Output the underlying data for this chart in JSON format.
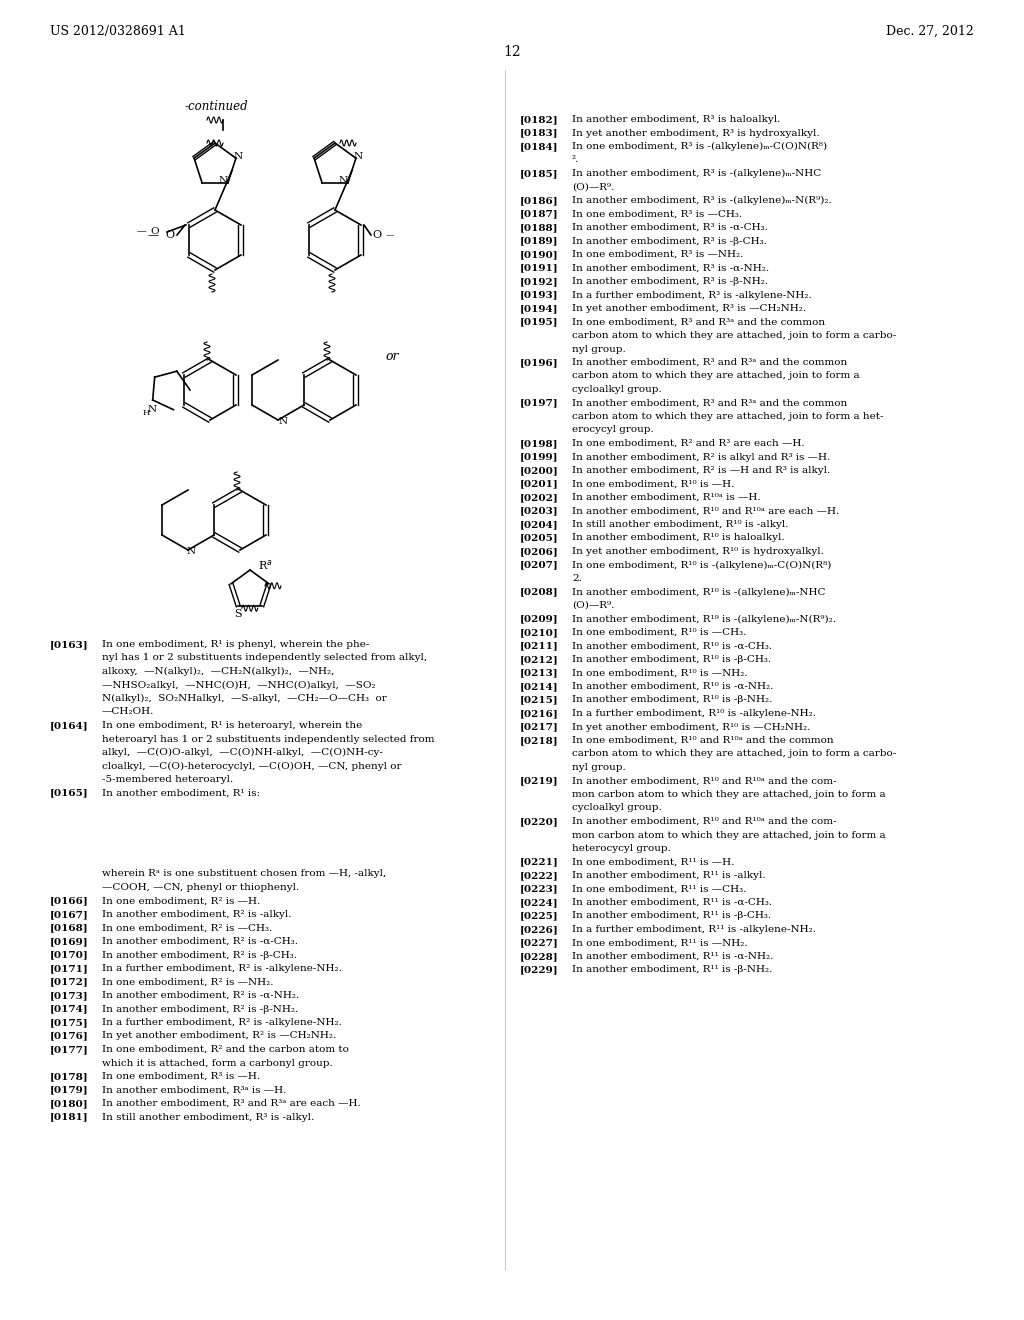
{
  "page_number": "12",
  "patent_number": "US 2012/0328691 A1",
  "patent_date": "Dec. 27, 2012",
  "background_color": "#ffffff",
  "text_color": "#000000",
  "font_size_header": 9.5,
  "font_size_body": 7.8,
  "font_size_page_num": 10,
  "continued_label": "-continued",
  "left_column_text": [
    [
      "[0163]",
      "In one embodiment, R¹ is phenyl, wherein the phe-\nnyl has 1 or 2 substituents independently selected from alkyl,\nalkoxy,  —N(alkyl)₂,  —CH₂N(alkyl)₂,  —NH₂,\n—NHSO₂alkyl,  —NHC(O)H,  —NHC(O)alkyl,  —SO₂\nN(alkyl)₂,  SO₂NHalkyl,  —S-alkyl,  —CH₂—O—CH₃  or\n—CH₂OH."
    ],
    [
      "[0164]",
      "In one embodiment, R¹ is heteroaryl, wherein the\nheteroaryl has 1 or 2 substituents independently selected from\nalkyl,  —C(O)O-alkyl,  —C(O)NH-alkyl,  —C(O)NH-cy-\ncloalkyl, —C(O)-heterocyclyl, —C(O)OH, —CN, phenyl or\n-5-membered heteroaryl."
    ],
    [
      "[0165]",
      "In another embodiment, R¹ is:"
    ],
    [
      "",
      "wherein Rᵃ is one substituent chosen from —H, -alkyl,\n—COOH, —CN, phenyl or thiophenyl."
    ],
    [
      "[0166]",
      "In one embodiment, R² is —H."
    ],
    [
      "[0167]",
      "In another embodiment, R² is -alkyl."
    ],
    [
      "[0168]",
      "In one embodiment, R² is —CH₃."
    ],
    [
      "[0169]",
      "In another embodiment, R² is -α-CH₃."
    ],
    [
      "[0170]",
      "In another embodiment, R² is -β-CH₃."
    ],
    [
      "[0171]",
      "In a further embodiment, R² is -alkylene-NH₂."
    ],
    [
      "[0172]",
      "In one embodiment, R² is —NH₂."
    ],
    [
      "[0173]",
      "In another embodiment, R² is -α-NH₂."
    ],
    [
      "[0174]",
      "In another embodiment, R² is -β-NH₂."
    ],
    [
      "[0175]",
      "In a further embodiment, R² is -alkylene-NH₂."
    ],
    [
      "[0176]",
      "In yet another embodiment, R² is —CH₂NH₂."
    ],
    [
      "[0177]",
      "In one embodiment, R² and the carbon atom to\nwhich it is attached, form a carbonyl group."
    ],
    [
      "[0178]",
      "In one embodiment, R³ is —H."
    ],
    [
      "[0179]",
      "In another embodiment, R³ᵃ is —H."
    ],
    [
      "[0180]",
      "In another embodiment, R³ and R³ᵃ are each —H."
    ],
    [
      "[0181]",
      "In still another embodiment, R³ is -alkyl."
    ]
  ],
  "right_column_text": [
    [
      "[0182]",
      "In another embodiment, R³ is haloalkyl."
    ],
    [
      "[0183]",
      "In yet another embodiment, R³ is hydroxyalkyl."
    ],
    [
      "[0184]",
      "In one embodiment, R³ is -(alkylene)ₘ-C(O)N(R⁸)\n²."
    ],
    [
      "[0185]",
      "In another embodiment, R³ is -(alkylene)ₘ-NHC\n(O)—R⁹."
    ],
    [
      "[0186]",
      "In another embodiment, R³ is -(alkylene)ₘ-N(R⁹)₂."
    ],
    [
      "[0187]",
      "In one embodiment, R³ is —CH₃."
    ],
    [
      "[0188]",
      "In another embodiment, R³ is -α-CH₃."
    ],
    [
      "[0189]",
      "In another embodiment, R³ is -β-CH₃."
    ],
    [
      "[0190]",
      "In one embodiment, R³ is —NH₂."
    ],
    [
      "[0191]",
      "In another embodiment, R³ is -α-NH₂."
    ],
    [
      "[0192]",
      "In another embodiment, R³ is -β-NH₂."
    ],
    [
      "[0193]",
      "In a further embodiment, R³ is -alkylene-NH₂."
    ],
    [
      "[0194]",
      "In yet another embodiment, R³ is —CH₂NH₂."
    ],
    [
      "[0195]",
      "In one embodiment, R³ and R³ᵃ and the common\ncarbon atom to which they are attached, join to form a carbo-\nnyl group."
    ],
    [
      "[0196]",
      "In another embodiment, R³ and R³ᵃ and the common\ncarbon atom to which they are attached, join to form a\ncycloalkyl group."
    ],
    [
      "[0197]",
      "In another embodiment, R³ and R³ᵃ and the common\ncarbon atom to which they are attached, join to form a het-\nerocycyl group."
    ],
    [
      "[0198]",
      "In one embodiment, R² and R³ are each —H."
    ],
    [
      "[0199]",
      "In another embodiment, R² is alkyl and R³ is —H."
    ],
    [
      "[0200]",
      "In another embodiment, R² is —H and R³ is alkyl."
    ],
    [
      "[0201]",
      "In one embodiment, R¹⁰ is —H."
    ],
    [
      "[0202]",
      "In another embodiment, R¹⁰ᵃ is —H."
    ],
    [
      "[0203]",
      "In another embodiment, R¹⁰ and R¹⁰ᵃ are each —H."
    ],
    [
      "[0204]",
      "In still another embodiment, R¹⁰ is -alkyl."
    ],
    [
      "[0205]",
      "In another embodiment, R¹⁰ is haloalkyl."
    ],
    [
      "[0206]",
      "In yet another embodiment, R¹⁰ is hydroxyalkyl."
    ],
    [
      "[0207]",
      "In one embodiment, R¹⁰ is -(alkylene)ₘ-C(O)N(R⁸)\n2."
    ],
    [
      "[0208]",
      "In another embodiment, R¹⁰ is -(alkylene)ₘ-NHC\n(O)—R⁹."
    ],
    [
      "[0209]",
      "In another embodiment, R¹⁹ is -(alkylene)ₘ-N(R⁹)₂."
    ],
    [
      "[0210]",
      "In one embodiment, R¹⁰ is —CH₃."
    ],
    [
      "[0211]",
      "In another embodiment, R¹⁰ is -α-CH₃."
    ],
    [
      "[0212]",
      "In another embodiment, R¹⁰ is -β-CH₃."
    ],
    [
      "[0213]",
      "In one embodiment, R¹⁰ is —NH₂."
    ],
    [
      "[0214]",
      "In another embodiment, R¹⁰ is -α-NH₂."
    ],
    [
      "[0215]",
      "In another embodiment, R¹⁰ is -β-NH₂."
    ],
    [
      "[0216]",
      "In a further embodiment, R¹⁰ is -alkylene-NH₂."
    ],
    [
      "[0217]",
      "In yet another embodiment, R¹⁰ is —CH₂NH₂."
    ],
    [
      "[0218]",
      "In one embodiment, R¹⁰ and R¹⁰ᵃ and the common\ncarbon atom to which they are attached, join to form a carbo-\nnyl group."
    ],
    [
      "[0219]",
      "In another embodiment, R¹⁰ and R¹⁰ᵃ and the com-\nmon carbon atom to which they are attached, join to form a\ncycloalkyl group."
    ],
    [
      "[0220]",
      "In another embodiment, R¹⁰ and R¹⁰ᵃ and the com-\nmon carbon atom to which they are attached, join to form a\nheteroycyl group."
    ],
    [
      "[0221]",
      "In one embodiment, R¹¹ is —H."
    ],
    [
      "[0222]",
      "In another embodiment, R¹¹ is -alkyl."
    ],
    [
      "[0223]",
      "In one embodiment, R¹¹ is —CH₃."
    ],
    [
      "[0224]",
      "In another embodiment, R¹¹ is -α-CH₃."
    ],
    [
      "[0225]",
      "In another embodiment, R¹¹ is -β-CH₃."
    ],
    [
      "[0226]",
      "In a further embodiment, R¹¹ is -alkylene-NH₂."
    ],
    [
      "[0227]",
      "In one embodiment, R¹¹ is —NH₂."
    ],
    [
      "[0228]",
      "In another embodiment, R¹¹ is -α-NH₂."
    ],
    [
      "[0229]",
      "In another embodiment, R¹¹ is -β-NH₂."
    ]
  ]
}
